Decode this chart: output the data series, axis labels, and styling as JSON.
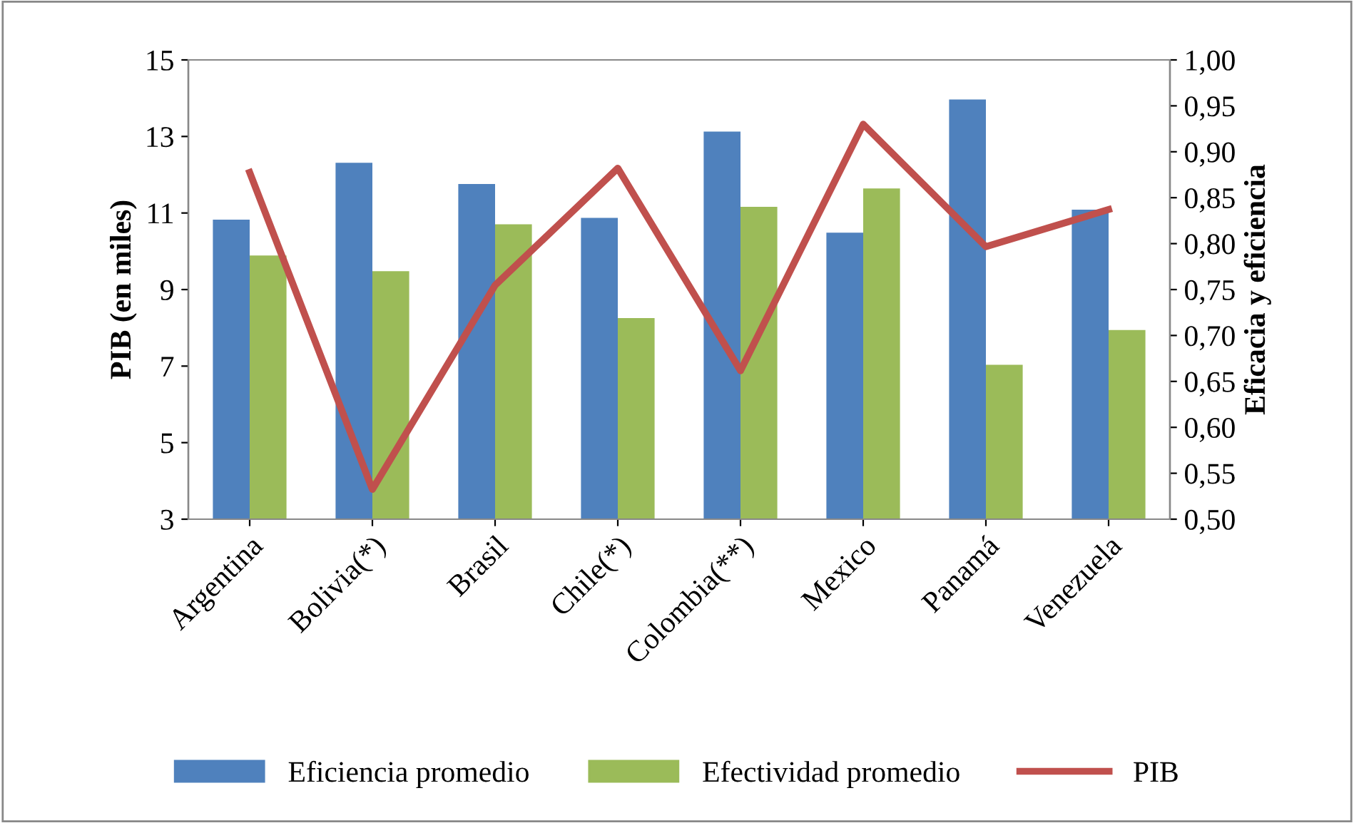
{
  "chart_data": {
    "type": "bar",
    "categories": [
      "Argentina",
      "Bolivia(*)",
      "Brasil",
      "Chile(*)",
      "Colombia(**)",
      "Mexico",
      "Panamá",
      "Venezuela"
    ],
    "series": [
      {
        "name": "Eficiencia promedio",
        "color": "#4f81bd",
        "axis": "y2",
        "values": [
          0.826,
          0.888,
          0.865,
          0.828,
          0.922,
          0.812,
          0.957,
          0.837
        ]
      },
      {
        "name": "Efectividad promedio",
        "color": "#9bbb59",
        "axis": "y2",
        "values": [
          0.787,
          0.77,
          0.821,
          0.719,
          0.84,
          0.86,
          0.668,
          0.706
        ]
      },
      {
        "name": "PIB",
        "color": "#c0504d",
        "type": "line",
        "axis": "y",
        "values": [
          12.06,
          3.78,
          9.11,
          12.17,
          6.88,
          13.32,
          10.12,
          11.09
        ]
      }
    ],
    "ylabel": "PIB (en miles)",
    "y2label": "Eficacia y eficiencia",
    "ylim": [
      3,
      15
    ],
    "yticks": [
      3,
      5,
      7,
      9,
      11,
      13,
      15
    ],
    "y2lim": [
      0.5,
      1.0
    ],
    "y2ticks": [
      {
        "value": 0.5,
        "label": "0,50"
      },
      {
        "value": 0.55,
        "label": "0,55"
      },
      {
        "value": 0.6,
        "label": "0,60"
      },
      {
        "value": 0.65,
        "label": "0,65"
      },
      {
        "value": 0.7,
        "label": "0,70"
      },
      {
        "value": 0.75,
        "label": "0,75"
      },
      {
        "value": 0.8,
        "label": "0,80"
      },
      {
        "value": 0.85,
        "label": "0,85"
      },
      {
        "value": 0.9,
        "label": "0,90"
      },
      {
        "value": 0.95,
        "label": "0,95"
      },
      {
        "value": 1.0,
        "label": "1,00"
      }
    ],
    "legend": "bottom",
    "grid": false,
    "marker": "none",
    "line_style": "solid"
  }
}
